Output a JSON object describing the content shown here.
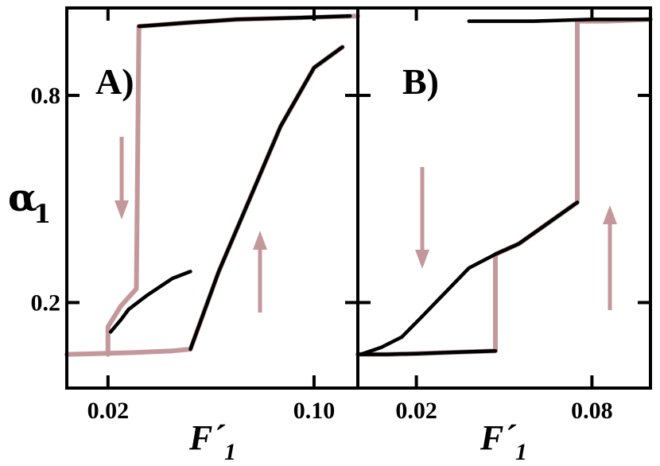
{
  "chart_data": [
    {
      "type": "line",
      "panel_label": "A)",
      "xlabel": "F´",
      "xlabel_subscript": "1",
      "ylabel": "α",
      "ylabel_subscript": "1",
      "xlim": [
        0.004,
        0.117
      ],
      "ylim": [
        0.0,
        1.0
      ],
      "xticks": [
        0.02,
        0.1
      ],
      "xtick_labels": [
        "0.02",
        "0.10"
      ],
      "yticks": [
        0.2,
        0.8
      ],
      "ytick_labels": [
        "0.2",
        "0.8"
      ],
      "series": [
        {
          "color": "#c4989a",
          "x": [
            0.004,
            0.015,
            0.03,
            0.045,
            0.052,
            0.063,
            0.075,
            0.087,
            0.1,
            0.111
          ],
          "y": [
            0.05,
            0.052,
            0.055,
            0.06,
            0.065,
            0.29,
            0.5,
            0.71,
            0.88,
            0.94
          ]
        },
        {
          "color": "#000000",
          "x": [
            0.052,
            0.063,
            0.075,
            0.087,
            0.1,
            0.111
          ],
          "y": [
            0.065,
            0.29,
            0.5,
            0.71,
            0.88,
            0.94
          ]
        },
        {
          "color": "#c4989a",
          "x": [
            0.117,
            0.095,
            0.07,
            0.05,
            0.032,
            0.031,
            0.025,
            0.02,
            0.02
          ],
          "y": [
            1.03,
            1.025,
            1.02,
            1.01,
            1.0,
            0.24,
            0.19,
            0.13,
            0.05
          ]
        },
        {
          "color": "#000000",
          "x": [
            0.114,
            0.095,
            0.07,
            0.05,
            0.032
          ],
          "y": [
            1.03,
            1.025,
            1.02,
            1.01,
            1.0
          ]
        },
        {
          "color": "#000000",
          "x": [
            0.052,
            0.045,
            0.035,
            0.028,
            0.025,
            0.021
          ],
          "y": [
            0.29,
            0.27,
            0.22,
            0.18,
            0.15,
            0.115
          ]
        }
      ],
      "arrows": [
        "down",
        "up"
      ]
    },
    {
      "type": "line",
      "panel_label": "B)",
      "xlabel": "F´",
      "xlabel_subscript": "1",
      "xlim": [
        0.0,
        0.1
      ],
      "ylim": [
        0.0,
        1.0
      ],
      "xticks": [
        0.02,
        0.08
      ],
      "xtick_labels": [
        "0.02",
        "0.08"
      ],
      "yticks": [
        0.2,
        0.8
      ],
      "series": [
        {
          "color": "#c4989a",
          "x": [
            0.0,
            0.01,
            0.02,
            0.03,
            0.04,
            0.047,
            0.047,
            0.055,
            0.065,
            0.075,
            0.075,
            0.085,
            0.1
          ],
          "y": [
            0.05,
            0.05,
            0.052,
            0.055,
            0.058,
            0.06,
            0.34,
            0.37,
            0.43,
            0.49,
            1.015,
            1.015,
            1.02
          ]
        },
        {
          "color": "#000000",
          "x": [
            0.0,
            0.01,
            0.02,
            0.03,
            0.04,
            0.047
          ],
          "y": [
            0.05,
            0.05,
            0.052,
            0.055,
            0.058,
            0.06
          ]
        },
        {
          "color": "#000000",
          "x": [
            0.001,
            0.008,
            0.015,
            0.022,
            0.03,
            0.038,
            0.047,
            0.055,
            0.065,
            0.075
          ],
          "y": [
            0.05,
            0.07,
            0.1,
            0.16,
            0.23,
            0.3,
            0.34,
            0.37,
            0.43,
            0.49
          ]
        },
        {
          "color": "#000000",
          "x": [
            0.1,
            0.08,
            0.06,
            0.04,
            0.038
          ],
          "y": [
            1.02,
            1.02,
            1.015,
            1.015,
            1.015
          ]
        }
      ],
      "arrows": [
        "down",
        "up"
      ]
    }
  ]
}
